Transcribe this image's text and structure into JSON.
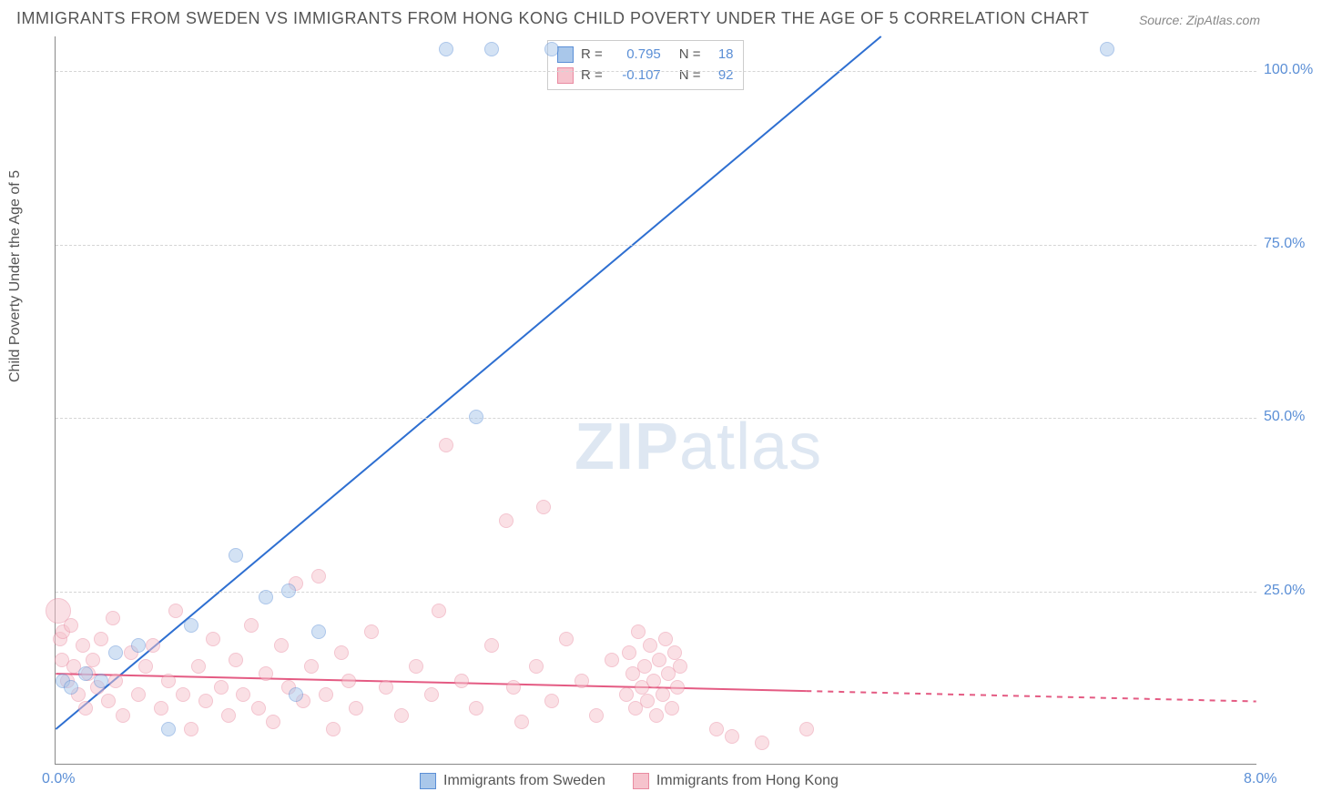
{
  "title": "IMMIGRANTS FROM SWEDEN VS IMMIGRANTS FROM HONG KONG CHILD POVERTY UNDER THE AGE OF 5 CORRELATION CHART",
  "source": "Source: ZipAtlas.com",
  "ylabel": "Child Poverty Under the Age of 5",
  "watermark": {
    "a": "ZIP",
    "b": "atlas"
  },
  "chart": {
    "type": "scatter",
    "xlim": [
      0.0,
      8.0
    ],
    "ylim": [
      0.0,
      105.0
    ],
    "yticks": [
      25.0,
      50.0,
      75.0,
      100.0
    ],
    "xticks": [
      0.0,
      8.0
    ],
    "grid_color": "#d5d5d5",
    "axis_color": "#888888",
    "tick_label_color": "#5b8fd6",
    "background": "#ffffff",
    "marker_radius": 8,
    "marker_opacity": 0.5,
    "series": [
      {
        "name": "Immigrants from Sweden",
        "color_fill": "#a9c7ea",
        "color_border": "#5b8fd6",
        "R": "0.795",
        "N": "18",
        "trend": {
          "x1": 0.0,
          "y1": 5.0,
          "x2": 5.5,
          "y2": 105.0,
          "color": "#2e6fd1",
          "width": 2
        },
        "points": [
          {
            "x": 0.05,
            "y": 12
          },
          {
            "x": 0.1,
            "y": 11
          },
          {
            "x": 0.2,
            "y": 13
          },
          {
            "x": 0.3,
            "y": 12
          },
          {
            "x": 0.4,
            "y": 16
          },
          {
            "x": 0.55,
            "y": 17
          },
          {
            "x": 0.75,
            "y": 5
          },
          {
            "x": 0.9,
            "y": 20
          },
          {
            "x": 1.2,
            "y": 30
          },
          {
            "x": 1.4,
            "y": 24
          },
          {
            "x": 1.55,
            "y": 25
          },
          {
            "x": 1.75,
            "y": 19
          },
          {
            "x": 1.6,
            "y": 10
          },
          {
            "x": 2.8,
            "y": 50
          },
          {
            "x": 2.6,
            "y": 103
          },
          {
            "x": 2.9,
            "y": 103
          },
          {
            "x": 3.3,
            "y": 103
          },
          {
            "x": 7.0,
            "y": 103
          }
        ]
      },
      {
        "name": "Immigrants from Hong Kong",
        "color_fill": "#f6c3cd",
        "color_border": "#e98ba1",
        "R": "-0.107",
        "N": "92",
        "trend": {
          "x1": 0.0,
          "y1": 13.0,
          "x2": 5.0,
          "y2": 10.5,
          "color": "#e45b83",
          "width": 2,
          "dash_from_x": 5.0,
          "x2_dash": 8.0,
          "y2_dash": 9.0
        },
        "points": [
          {
            "x": 0.02,
            "y": 22,
            "r": 14
          },
          {
            "x": 0.03,
            "y": 18
          },
          {
            "x": 0.04,
            "y": 15
          },
          {
            "x": 0.05,
            "y": 19
          },
          {
            "x": 0.08,
            "y": 12
          },
          {
            "x": 0.1,
            "y": 20
          },
          {
            "x": 0.12,
            "y": 14
          },
          {
            "x": 0.15,
            "y": 10
          },
          {
            "x": 0.18,
            "y": 17
          },
          {
            "x": 0.2,
            "y": 8
          },
          {
            "x": 0.22,
            "y": 13
          },
          {
            "x": 0.25,
            "y": 15
          },
          {
            "x": 0.28,
            "y": 11
          },
          {
            "x": 0.3,
            "y": 18
          },
          {
            "x": 0.35,
            "y": 9
          },
          {
            "x": 0.38,
            "y": 21
          },
          {
            "x": 0.4,
            "y": 12
          },
          {
            "x": 0.45,
            "y": 7
          },
          {
            "x": 0.5,
            "y": 16
          },
          {
            "x": 0.55,
            "y": 10
          },
          {
            "x": 0.6,
            "y": 14
          },
          {
            "x": 0.65,
            "y": 17
          },
          {
            "x": 0.7,
            "y": 8
          },
          {
            "x": 0.75,
            "y": 12
          },
          {
            "x": 0.8,
            "y": 22
          },
          {
            "x": 0.85,
            "y": 10
          },
          {
            "x": 0.9,
            "y": 5
          },
          {
            "x": 0.95,
            "y": 14
          },
          {
            "x": 1.0,
            "y": 9
          },
          {
            "x": 1.05,
            "y": 18
          },
          {
            "x": 1.1,
            "y": 11
          },
          {
            "x": 1.15,
            "y": 7
          },
          {
            "x": 1.2,
            "y": 15
          },
          {
            "x": 1.25,
            "y": 10
          },
          {
            "x": 1.3,
            "y": 20
          },
          {
            "x": 1.35,
            "y": 8
          },
          {
            "x": 1.4,
            "y": 13
          },
          {
            "x": 1.45,
            "y": 6
          },
          {
            "x": 1.5,
            "y": 17
          },
          {
            "x": 1.55,
            "y": 11
          },
          {
            "x": 1.6,
            "y": 26
          },
          {
            "x": 1.65,
            "y": 9
          },
          {
            "x": 1.7,
            "y": 14
          },
          {
            "x": 1.75,
            "y": 27
          },
          {
            "x": 1.8,
            "y": 10
          },
          {
            "x": 1.85,
            "y": 5
          },
          {
            "x": 1.9,
            "y": 16
          },
          {
            "x": 1.95,
            "y": 12
          },
          {
            "x": 2.0,
            "y": 8
          },
          {
            "x": 2.1,
            "y": 19
          },
          {
            "x": 2.2,
            "y": 11
          },
          {
            "x": 2.3,
            "y": 7
          },
          {
            "x": 2.4,
            "y": 14
          },
          {
            "x": 2.5,
            "y": 10
          },
          {
            "x": 2.55,
            "y": 22
          },
          {
            "x": 2.6,
            "y": 46
          },
          {
            "x": 2.7,
            "y": 12
          },
          {
            "x": 2.8,
            "y": 8
          },
          {
            "x": 2.9,
            "y": 17
          },
          {
            "x": 3.0,
            "y": 35
          },
          {
            "x": 3.05,
            "y": 11
          },
          {
            "x": 3.1,
            "y": 6
          },
          {
            "x": 3.2,
            "y": 14
          },
          {
            "x": 3.25,
            "y": 37
          },
          {
            "x": 3.3,
            "y": 9
          },
          {
            "x": 3.4,
            "y": 18
          },
          {
            "x": 3.5,
            "y": 12
          },
          {
            "x": 3.6,
            "y": 7
          },
          {
            "x": 3.7,
            "y": 15
          },
          {
            "x": 3.8,
            "y": 10
          },
          {
            "x": 3.82,
            "y": 16
          },
          {
            "x": 3.84,
            "y": 13
          },
          {
            "x": 3.86,
            "y": 8
          },
          {
            "x": 3.88,
            "y": 19
          },
          {
            "x": 3.9,
            "y": 11
          },
          {
            "x": 3.92,
            "y": 14
          },
          {
            "x": 3.94,
            "y": 9
          },
          {
            "x": 3.96,
            "y": 17
          },
          {
            "x": 3.98,
            "y": 12
          },
          {
            "x": 4.0,
            "y": 7
          },
          {
            "x": 4.02,
            "y": 15
          },
          {
            "x": 4.04,
            "y": 10
          },
          {
            "x": 4.06,
            "y": 18
          },
          {
            "x": 4.08,
            "y": 13
          },
          {
            "x": 4.1,
            "y": 8
          },
          {
            "x": 4.12,
            "y": 16
          },
          {
            "x": 4.14,
            "y": 11
          },
          {
            "x": 4.16,
            "y": 14
          },
          {
            "x": 4.4,
            "y": 5
          },
          {
            "x": 4.5,
            "y": 4
          },
          {
            "x": 4.7,
            "y": 3
          },
          {
            "x": 5.0,
            "y": 5
          }
        ]
      }
    ],
    "legend_bottom": [
      {
        "label": "Immigrants from Sweden",
        "fill": "#a9c7ea",
        "border": "#5b8fd6"
      },
      {
        "label": "Immigrants from Hong Kong",
        "fill": "#f6c3cd",
        "border": "#e98ba1"
      }
    ],
    "legend_top_text": {
      "r_label": "R =",
      "n_label": "N ="
    }
  }
}
